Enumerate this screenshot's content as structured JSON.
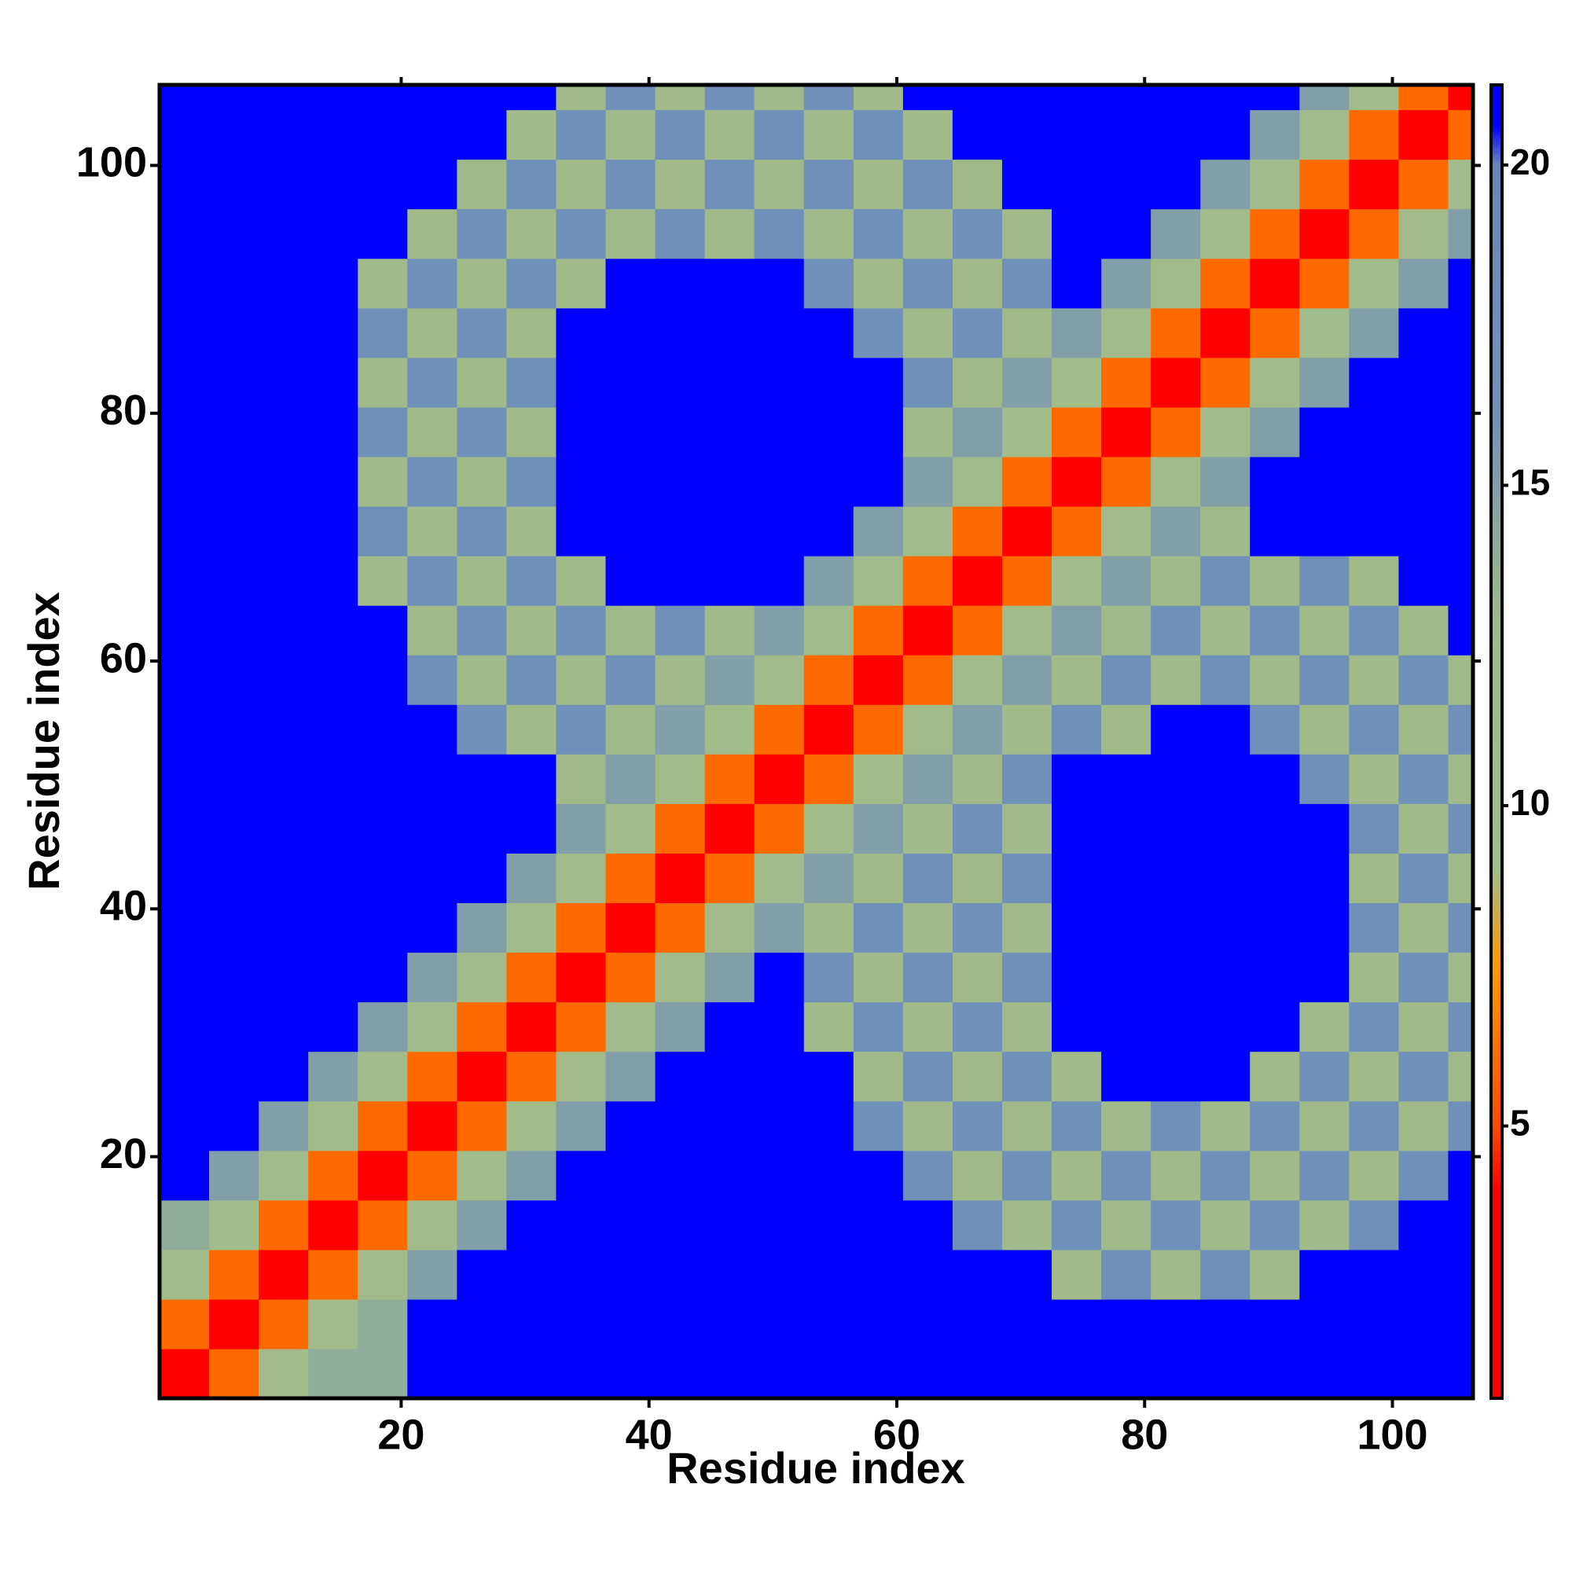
{
  "chart_data": {
    "type": "heatmap",
    "xlabel": "Residue index",
    "ylabel": "Residue index",
    "xbins": [
      0.5,
      4.5,
      8.5,
      12.5,
      16.5,
      20.5,
      24.5,
      28.5,
      32.5,
      36.5,
      40.5,
      44.5,
      48.5,
      52.5,
      56.5,
      60.5,
      64.5,
      68.5,
      72.5,
      76.5,
      80.5,
      84.5,
      88.5,
      92.5,
      96.5,
      100.5,
      104.5,
      106.5
    ],
    "ybins": [
      0.5,
      4.5,
      8.5,
      12.5,
      16.5,
      20.5,
      24.5,
      28.5,
      32.5,
      36.5,
      40.5,
      44.5,
      48.5,
      52.5,
      56.5,
      60.5,
      64.5,
      68.5,
      72.5,
      76.5,
      80.5,
      84.5,
      88.5,
      92.5,
      96.5,
      100.5,
      104.5,
      106.5
    ],
    "xlim": [
      0.5,
      106.5
    ],
    "ylim": [
      0.5,
      106.5
    ],
    "xticks": [
      20,
      40,
      60,
      80,
      100
    ],
    "yticks": [
      20,
      40,
      60,
      80,
      100
    ],
    "values": [
      [
        2,
        6,
        11,
        14,
        14,
        21,
        21,
        21,
        21,
        21,
        21,
        21,
        21,
        21,
        21,
        21,
        21,
        21,
        21,
        21,
        21,
        21,
        21,
        21,
        21,
        21,
        21
      ],
      [
        6,
        2,
        6,
        11,
        14,
        21,
        21,
        21,
        21,
        21,
        21,
        21,
        21,
        21,
        21,
        21,
        21,
        21,
        21,
        21,
        21,
        21,
        21,
        21,
        21,
        21,
        21
      ],
      [
        11,
        6,
        2,
        6,
        11,
        15,
        21,
        21,
        21,
        21,
        21,
        21,
        21,
        21,
        21,
        21,
        21,
        21,
        12,
        17,
        12,
        17,
        12,
        21,
        21,
        21,
        21
      ],
      [
        14,
        11,
        6,
        2,
        6,
        11,
        15,
        21,
        21,
        21,
        21,
        21,
        21,
        21,
        21,
        21,
        17,
        12,
        17,
        12,
        17,
        12,
        17,
        12,
        17,
        21,
        21
      ],
      [
        21,
        15,
        11,
        6,
        2,
        6,
        11,
        15,
        21,
        21,
        21,
        21,
        21,
        21,
        21,
        17,
        12,
        17,
        12,
        17,
        12,
        17,
        12,
        17,
        12,
        17,
        21
      ],
      [
        21,
        21,
        15,
        11,
        6,
        2,
        6,
        11,
        15,
        21,
        21,
        21,
        21,
        21,
        17,
        12,
        17,
        12,
        17,
        12,
        17,
        12,
        17,
        12,
        17,
        12,
        17
      ],
      [
        21,
        21,
        21,
        15,
        11,
        6,
        2,
        6,
        11,
        15,
        21,
        21,
        21,
        21,
        12,
        17,
        12,
        17,
        12,
        21,
        21,
        21,
        12,
        17,
        12,
        17,
        12
      ],
      [
        21,
        21,
        21,
        21,
        15,
        11,
        6,
        2,
        6,
        11,
        15,
        21,
        21,
        12,
        17,
        12,
        17,
        12,
        21,
        21,
        21,
        21,
        21,
        12,
        17,
        12,
        17
      ],
      [
        21,
        21,
        21,
        21,
        21,
        15,
        11,
        6,
        2,
        6,
        11,
        15,
        21,
        17,
        12,
        17,
        12,
        17,
        21,
        21,
        21,
        21,
        21,
        21,
        12,
        17,
        12
      ],
      [
        21,
        21,
        21,
        21,
        21,
        21,
        15,
        11,
        6,
        2,
        6,
        11,
        15,
        12,
        17,
        12,
        17,
        12,
        21,
        21,
        21,
        21,
        21,
        21,
        17,
        12,
        17
      ],
      [
        21,
        21,
        21,
        21,
        21,
        21,
        21,
        15,
        11,
        6,
        2,
        6,
        11,
        15,
        12,
        17,
        12,
        17,
        21,
        21,
        21,
        21,
        21,
        21,
        12,
        17,
        12
      ],
      [
        21,
        21,
        21,
        21,
        21,
        21,
        21,
        21,
        15,
        11,
        6,
        2,
        6,
        11,
        15,
        12,
        17,
        12,
        21,
        21,
        21,
        21,
        21,
        21,
        17,
        12,
        17
      ],
      [
        21,
        21,
        21,
        21,
        21,
        21,
        21,
        21,
        12,
        15,
        11,
        6,
        2,
        6,
        11,
        15,
        12,
        17,
        21,
        21,
        21,
        21,
        21,
        17,
        12,
        17,
        12
      ],
      [
        21,
        21,
        21,
        21,
        21,
        21,
        17,
        12,
        17,
        12,
        15,
        11,
        6,
        2,
        6,
        11,
        15,
        12,
        17,
        12,
        21,
        21,
        17,
        12,
        17,
        12,
        17
      ],
      [
        21,
        21,
        21,
        21,
        21,
        17,
        12,
        17,
        12,
        17,
        12,
        15,
        11,
        6,
        2,
        6,
        11,
        15,
        12,
        17,
        12,
        17,
        12,
        17,
        12,
        17,
        12
      ],
      [
        21,
        21,
        21,
        21,
        21,
        12,
        17,
        12,
        17,
        12,
        17,
        12,
        15,
        11,
        6,
        2,
        6,
        11,
        15,
        12,
        17,
        12,
        17,
        12,
        17,
        12,
        21
      ],
      [
        21,
        21,
        21,
        21,
        12,
        17,
        12,
        17,
        12,
        21,
        21,
        21,
        21,
        15,
        11,
        6,
        2,
        6,
        11,
        15,
        12,
        17,
        12,
        17,
        12,
        21,
        21
      ],
      [
        21,
        21,
        21,
        21,
        17,
        12,
        17,
        12,
        21,
        21,
        21,
        21,
        21,
        21,
        15,
        11,
        6,
        2,
        6,
        11,
        15,
        12,
        21,
        21,
        21,
        21,
        21
      ],
      [
        21,
        21,
        21,
        21,
        12,
        17,
        12,
        17,
        21,
        21,
        21,
        21,
        21,
        21,
        21,
        15,
        11,
        6,
        2,
        6,
        11,
        15,
        21,
        21,
        21,
        21,
        21
      ],
      [
        21,
        21,
        21,
        21,
        17,
        12,
        17,
        12,
        21,
        21,
        21,
        21,
        21,
        21,
        21,
        12,
        15,
        11,
        6,
        2,
        6,
        11,
        15,
        21,
        21,
        21,
        21
      ],
      [
        21,
        21,
        21,
        21,
        12,
        17,
        12,
        17,
        21,
        21,
        21,
        21,
        21,
        21,
        21,
        17,
        12,
        15,
        11,
        6,
        2,
        6,
        11,
        15,
        21,
        21,
        21
      ],
      [
        21,
        21,
        21,
        21,
        17,
        12,
        17,
        12,
        21,
        21,
        21,
        21,
        21,
        21,
        17,
        12,
        17,
        12,
        15,
        11,
        6,
        2,
        6,
        11,
        15,
        21,
        21
      ],
      [
        21,
        21,
        21,
        21,
        12,
        17,
        12,
        17,
        12,
        21,
        21,
        21,
        21,
        17,
        12,
        17,
        12,
        17,
        21,
        15,
        11,
        6,
        2,
        6,
        11,
        15,
        21
      ],
      [
        21,
        21,
        21,
        21,
        21,
        12,
        17,
        12,
        17,
        12,
        17,
        12,
        17,
        12,
        17,
        12,
        17,
        12,
        21,
        21,
        15,
        11,
        6,
        2,
        6,
        11,
        15
      ],
      [
        21,
        21,
        21,
        21,
        21,
        21,
        12,
        17,
        12,
        17,
        12,
        17,
        12,
        17,
        12,
        17,
        12,
        21,
        21,
        21,
        21,
        15,
        11,
        6,
        2,
        6,
        11
      ],
      [
        21,
        21,
        21,
        21,
        21,
        21,
        21,
        12,
        17,
        12,
        17,
        12,
        17,
        12,
        17,
        12,
        21,
        21,
        21,
        21,
        21,
        21,
        15,
        11,
        6,
        2,
        6
      ],
      [
        21,
        21,
        21,
        21,
        21,
        21,
        21,
        21,
        12,
        17,
        12,
        17,
        12,
        17,
        12,
        21,
        21,
        21,
        21,
        21,
        21,
        21,
        21,
        15,
        11,
        6,
        2
      ]
    ],
    "colorbar": {
      "lim": [
        0.75,
        21.25
      ],
      "ticks": [
        5,
        10,
        15,
        20
      ],
      "stops": [
        [
          0.75,
          "#ff0000"
        ],
        [
          4,
          "#ff0000"
        ],
        [
          5,
          "#ff4a00"
        ],
        [
          7.5,
          "#ff9a00"
        ],
        [
          9,
          "#a2bd88"
        ],
        [
          13,
          "#9fb98b"
        ],
        [
          16,
          "#7392b8"
        ],
        [
          20,
          "#6888bd"
        ],
        [
          20.6,
          "#0000ff"
        ],
        [
          21.25,
          "#0000ff"
        ]
      ]
    }
  }
}
